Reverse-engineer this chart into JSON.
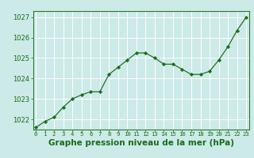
{
  "x": [
    0,
    1,
    2,
    3,
    4,
    5,
    6,
    7,
    8,
    9,
    10,
    11,
    12,
    13,
    14,
    15,
    16,
    17,
    18,
    19,
    20,
    21,
    22,
    23
  ],
  "y": [
    1021.6,
    1021.9,
    1022.1,
    1022.6,
    1023.0,
    1023.2,
    1023.35,
    1023.35,
    1024.2,
    1024.55,
    1024.9,
    1025.25,
    1025.25,
    1025.0,
    1024.7,
    1024.7,
    1024.45,
    1024.2,
    1024.2,
    1024.35,
    1024.9,
    1025.55,
    1026.35,
    1027.0
  ],
  "ylim": [
    1021.5,
    1027.3
  ],
  "yticks": [
    1022,
    1023,
    1024,
    1025,
    1026,
    1027
  ],
  "xticks": [
    0,
    1,
    2,
    3,
    4,
    5,
    6,
    7,
    8,
    9,
    10,
    11,
    12,
    13,
    14,
    15,
    16,
    17,
    18,
    19,
    20,
    21,
    22,
    23
  ],
  "line_color": "#1a6b1a",
  "marker_color": "#1a6b1a",
  "bg_color": "#cceae7",
  "grid_color": "#ffffff",
  "border_color": "#2d7a2d",
  "xlabel": "Graphe pression niveau de la mer (hPa)",
  "xlabel_color": "#1a6b1a",
  "tick_color": "#1a6b1a",
  "xlabel_fontsize": 7.5,
  "ytick_fontsize": 6.0,
  "xtick_fontsize": 5.2
}
